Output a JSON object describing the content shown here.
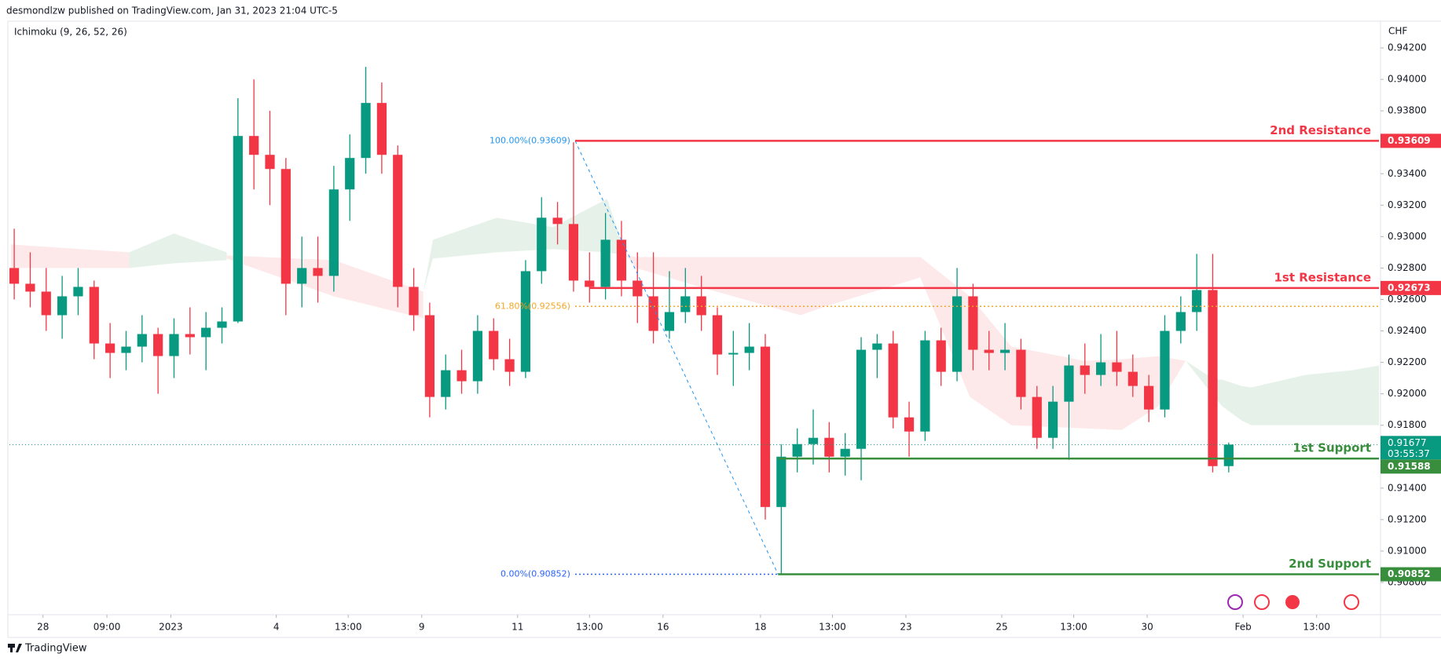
{
  "header": {
    "published": "desmondlzw published on TradingView.com, Jan 31, 2023 21:04 UTC-5",
    "indicator": "Ichimoku (9, 26, 52, 26)",
    "brand": "TradingView"
  },
  "chart_data": {
    "type": "candlestick",
    "currency": "CHF",
    "x": [
      0,
      1,
      2,
      3,
      4,
      5,
      6,
      7,
      8,
      9,
      10,
      11,
      12,
      13,
      14,
      15,
      16,
      17,
      18,
      19,
      20,
      21,
      22,
      23,
      24,
      25,
      26,
      27,
      28,
      29,
      30,
      31,
      32,
      33,
      34,
      35,
      36,
      37,
      38,
      39,
      40,
      41,
      42,
      43,
      44,
      45,
      46,
      47,
      48,
      49,
      50,
      51,
      52,
      53,
      54,
      55,
      56,
      57,
      58,
      59,
      60,
      61,
      62,
      63,
      64,
      65,
      66,
      67,
      68,
      69,
      70,
      71,
      72,
      73,
      74,
      75,
      76
    ],
    "open": [
      0.928,
      0.927,
      0.9265,
      0.925,
      0.9262,
      0.9268,
      0.9232,
      0.9226,
      0.923,
      0.9238,
      0.9224,
      0.9238,
      0.9236,
      0.9242,
      0.9246,
      0.9364,
      0.9352,
      0.9343,
      0.927,
      0.928,
      0.9275,
      0.933,
      0.935,
      0.9385,
      0.9352,
      0.9268,
      0.925,
      0.9198,
      0.9215,
      0.9208,
      0.924,
      0.9222,
      0.9214,
      0.9278,
      0.9312,
      0.9308,
      0.9272,
      0.9268,
      0.9298,
      0.9272,
      0.9262,
      0.924,
      0.9252,
      0.9262,
      0.925,
      0.9225,
      0.9226,
      0.923,
      0.9128,
      0.916,
      0.9168,
      0.9172,
      0.916,
      0.9165,
      0.9228,
      0.9232,
      0.9185,
      0.9176,
      0.9234,
      0.9214,
      0.9262,
      0.9228,
      0.9226,
      0.9228,
      0.9198,
      0.9172,
      0.9195,
      0.9218,
      0.9212,
      0.922,
      0.9214,
      0.9205,
      0.919,
      0.924,
      0.9252,
      0.9266,
      0.9154
    ],
    "high": [
      0.9305,
      0.929,
      0.928,
      0.9275,
      0.928,
      0.9272,
      0.9245,
      0.924,
      0.925,
      0.9242,
      0.9248,
      0.9255,
      0.9252,
      0.9255,
      0.9388,
      0.94,
      0.938,
      0.935,
      0.93,
      0.93,
      0.9345,
      0.9365,
      0.9408,
      0.9398,
      0.9358,
      0.928,
      0.9258,
      0.9225,
      0.9228,
      0.925,
      0.9248,
      0.9235,
      0.9285,
      0.9325,
      0.9322,
      0.936,
      0.929,
      0.9315,
      0.931,
      0.929,
      0.929,
      0.9278,
      0.928,
      0.9275,
      0.9255,
      0.924,
      0.9245,
      0.9238,
      0.9168,
      0.9178,
      0.919,
      0.9182,
      0.9175,
      0.9236,
      0.9238,
      0.924,
      0.9195,
      0.924,
      0.9242,
      0.928,
      0.927,
      0.924,
      0.9245,
      0.9235,
      0.9205,
      0.9205,
      0.9225,
      0.9232,
      0.9238,
      0.924,
      0.9225,
      0.9212,
      0.925,
      0.9262,
      0.9289,
      0.9289,
      0.9169
    ],
    "low": [
      0.926,
      0.9255,
      0.924,
      0.9235,
      0.925,
      0.9222,
      0.921,
      0.9215,
      0.922,
      0.92,
      0.921,
      0.9225,
      0.9215,
      0.9232,
      0.9245,
      0.933,
      0.932,
      0.925,
      0.9255,
      0.9258,
      0.9265,
      0.931,
      0.934,
      0.934,
      0.9255,
      0.924,
      0.9185,
      0.919,
      0.92,
      0.92,
      0.9215,
      0.9205,
      0.921,
      0.927,
      0.9295,
      0.9265,
      0.9258,
      0.926,
      0.9262,
      0.9245,
      0.9232,
      0.9235,
      0.9245,
      0.924,
      0.9212,
      0.9205,
      0.9215,
      0.912,
      0.9085,
      0.915,
      0.9155,
      0.915,
      0.9148,
      0.9145,
      0.921,
      0.9178,
      0.916,
      0.917,
      0.9205,
      0.9208,
      0.9215,
      0.9215,
      0.9215,
      0.919,
      0.9165,
      0.9165,
      0.9158,
      0.92,
      0.9205,
      0.9205,
      0.9198,
      0.9182,
      0.9185,
      0.9232,
      0.924,
      0.915,
      0.915
    ],
    "close": [
      0.927,
      0.9265,
      0.925,
      0.9262,
      0.9268,
      0.9232,
      0.9226,
      0.923,
      0.9238,
      0.9224,
      0.9238,
      0.9236,
      0.9242,
      0.9246,
      0.9364,
      0.9352,
      0.9343,
      0.927,
      0.928,
      0.9275,
      0.933,
      0.935,
      0.9385,
      0.9352,
      0.9268,
      0.925,
      0.9198,
      0.9215,
      0.9208,
      0.924,
      0.9222,
      0.9214,
      0.9278,
      0.9312,
      0.9308,
      0.9272,
      0.9268,
      0.9298,
      0.9272,
      0.9262,
      0.924,
      0.9252,
      0.9262,
      0.925,
      0.9225,
      0.9226,
      0.923,
      0.9128,
      0.916,
      0.9168,
      0.9172,
      0.916,
      0.9165,
      0.9228,
      0.9232,
      0.9185,
      0.9176,
      0.9234,
      0.9214,
      0.9262,
      0.9228,
      0.9226,
      0.9228,
      0.9198,
      0.9172,
      0.9195,
      0.9218,
      0.9212,
      0.922,
      0.9214,
      0.9205,
      0.919,
      0.924,
      0.9252,
      0.9266,
      0.9154,
      0.91677
    ],
    "up_color": "#089981",
    "down_color": "#f23645",
    "xlim": [
      -0.3,
      85.4
    ],
    "xticks": [
      {
        "value": 1.8,
        "label": "28"
      },
      {
        "value": 5.8,
        "label": "09:00"
      },
      {
        "value": 9.8,
        "label": "2023"
      },
      {
        "value": 16.4,
        "label": "4"
      },
      {
        "value": 20.9,
        "label": "13:00"
      },
      {
        "value": 25.5,
        "label": "9"
      },
      {
        "value": 31.5,
        "label": "11"
      },
      {
        "value": 36,
        "label": "13:00"
      },
      {
        "value": 40.6,
        "label": "16"
      },
      {
        "value": 46.7,
        "label": "18"
      },
      {
        "value": 51.2,
        "label": "13:00"
      },
      {
        "value": 55.8,
        "label": "23"
      },
      {
        "value": 61.8,
        "label": "25"
      },
      {
        "value": 66.3,
        "label": "13:00"
      },
      {
        "value": 70.9,
        "label": "30"
      },
      {
        "value": 76.9,
        "label": "Feb"
      },
      {
        "value": 81.5,
        "label": "13:00"
      }
    ],
    "ylim": [
      0.9061,
      0.9436
    ],
    "yticks": [
      {
        "value": 0.908,
        "label": "0.90800"
      },
      {
        "value": 0.91,
        "label": "0.91000"
      },
      {
        "value": 0.912,
        "label": "0.91200"
      },
      {
        "value": 0.914,
        "label": "0.91400"
      },
      {
        "value": 0.916,
        "label": "0.91600"
      },
      {
        "value": 0.918,
        "label": "0.91800"
      },
      {
        "value": 0.92,
        "label": "0.92000"
      },
      {
        "value": 0.922,
        "label": "0.92200"
      },
      {
        "value": 0.924,
        "label": "0.92400"
      },
      {
        "value": 0.926,
        "label": "0.92600"
      },
      {
        "value": 0.928,
        "label": "0.92800"
      },
      {
        "value": 0.93,
        "label": "0.93000"
      },
      {
        "value": 0.932,
        "label": "0.93200"
      },
      {
        "value": 0.934,
        "label": "0.93400"
      },
      {
        "value": 0.936,
        "label": "0.93600"
      },
      {
        "value": 0.938,
        "label": "0.93800"
      },
      {
        "value": 0.94,
        "label": "0.94000"
      },
      {
        "value": 0.942,
        "label": "0.94200"
      }
    ],
    "cloud": [
      {
        "color": "#fde9ea",
        "x": [
          -0.2,
          7.2
        ],
        "top": [
          0.9295,
          0.929
        ],
        "bottom": [
          0.928,
          0.928
        ]
      },
      {
        "color": "#e6f2e9",
        "x": [
          7.2,
          10,
          13.3
        ],
        "top": [
          0.929,
          0.9302,
          0.929
        ],
        "bottom": [
          0.928,
          0.9283,
          0.9285
        ]
      },
      {
        "color": "#fde9ea",
        "x": [
          13.3,
          20,
          25.6
        ],
        "top": [
          0.9288,
          0.9285,
          0.9265
        ],
        "bottom": [
          0.9286,
          0.9262,
          0.9248
        ]
      },
      {
        "color": "#e6f2e9",
        "x": [
          25.6,
          26.2,
          30.2,
          33.7,
          37.1,
          38.3
        ],
        "top": [
          0.9265,
          0.9298,
          0.9312,
          0.9306,
          0.9324,
          0.9288
        ],
        "bottom": [
          0.9265,
          0.9286,
          0.929,
          0.9292,
          0.929,
          0.9288
        ]
      },
      {
        "color": "#fde9ea",
        "x": [
          38.3,
          38.9,
          42.9,
          49.2,
          50.9,
          56.7,
          59.8,
          62.4,
          67,
          69.3,
          71.6,
          73.3
        ],
        "top": [
          0.9288,
          0.9287,
          0.9287,
          0.9287,
          0.9287,
          0.9287,
          0.9262,
          0.923,
          0.9221,
          0.9222,
          0.9224,
          0.9221
        ],
        "bottom": [
          0.9288,
          0.928,
          0.9268,
          0.925,
          0.9256,
          0.9274,
          0.9198,
          0.918,
          0.9178,
          0.9177,
          0.9192,
          0.9221
        ]
      },
      {
        "color": "#e6f2e9",
        "x": [
          73.3,
          75.1,
          75.6,
          76.8,
          77.4,
          80.8,
          83.7,
          85.4
        ],
        "top": [
          0.9221,
          0.9209,
          0.9209,
          0.9205,
          0.9204,
          0.9212,
          0.9215,
          0.9218
        ],
        "bottom": [
          0.9221,
          0.9198,
          0.9192,
          0.9183,
          0.918,
          0.918,
          0.918,
          0.918
        ]
      }
    ],
    "fib": {
      "start": 35.1,
      "levels": [
        {
          "value": 0.93609,
          "label": "100.00%(0.93609)",
          "color": "#2196f3",
          "end": 35.1
        },
        {
          "value": 0.92556,
          "label": "61.80%(0.92556)",
          "color": "#f5a623",
          "end": 85.4
        },
        {
          "value": 0.90852,
          "label": "0.00%(0.90852)",
          "color": "#2962ff",
          "end": 47.8
        }
      ],
      "diagonal": {
        "x": [
          35.1,
          47.8
        ],
        "y": [
          0.93609,
          0.90852
        ],
        "color": "#2196f3"
      }
    },
    "levels": [
      {
        "label": "2nd Resistance",
        "value": 0.93609,
        "start": 35.1,
        "color": "#f23645"
      },
      {
        "label": "1st Resistance",
        "value": 0.92673,
        "start": 36,
        "color": "#f23645"
      },
      {
        "label": "1st Support",
        "value": 0.91588,
        "start": 47.8,
        "color": "#388e3c"
      },
      {
        "label": "2nd Support",
        "value": 0.90852,
        "start": 47.8,
        "color": "#388e3c"
      }
    ],
    "last_price": {
      "value": 0.91677,
      "countdown": "03:55:37",
      "color": "#089981"
    }
  }
}
